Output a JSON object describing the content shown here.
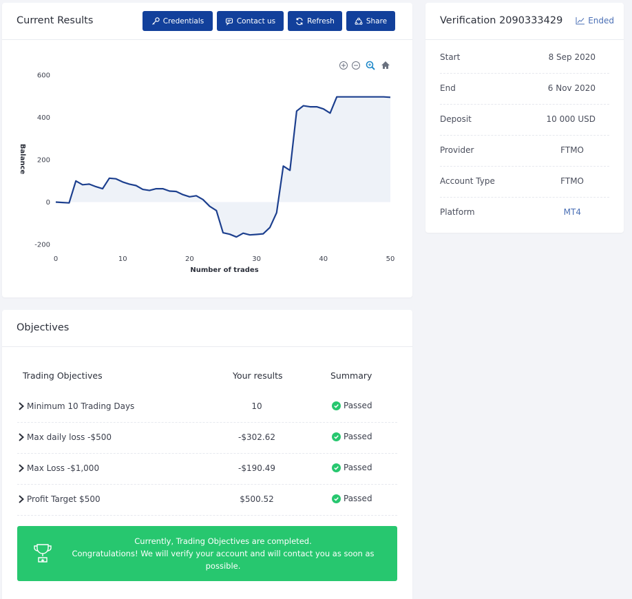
{
  "results": {
    "title": "Current Results",
    "buttons": {
      "credentials": "Credentials",
      "contact": "Contact us",
      "refresh": "Refresh",
      "share": "Share"
    }
  },
  "chart_data": {
    "type": "area",
    "xlabel": "Number of trades",
    "ylabel": "Balance",
    "xlim": [
      0,
      50
    ],
    "ylim": [
      -200,
      600
    ],
    "x_ticks": [
      0,
      10,
      20,
      30,
      40,
      50
    ],
    "y_ticks": [
      600,
      400,
      200,
      0,
      -200
    ],
    "x": [
      0,
      1,
      2,
      3,
      4,
      5,
      6,
      7,
      8,
      9,
      10,
      11,
      12,
      13,
      14,
      15,
      16,
      17,
      18,
      19,
      20,
      21,
      22,
      23,
      24,
      25,
      26,
      27,
      28,
      29,
      30,
      31,
      32,
      33,
      34,
      35,
      36,
      37,
      38,
      39,
      40,
      41,
      42,
      43,
      44,
      45,
      46,
      47,
      48,
      49,
      50
    ],
    "y": [
      0,
      -2,
      -4,
      100,
      82,
      85,
      73,
      63,
      113,
      110,
      95,
      85,
      78,
      60,
      55,
      63,
      63,
      52,
      50,
      35,
      25,
      30,
      12,
      -20,
      -40,
      -145,
      -152,
      -165,
      -147,
      -155,
      -153,
      -150,
      -120,
      -50,
      170,
      150,
      430,
      455,
      450,
      450,
      440,
      420,
      497,
      497,
      497,
      497,
      497,
      497,
      497,
      497,
      495
    ],
    "line_color": "#1c3f8e",
    "fill_color": "#eef2f8",
    "toolbar_icons": [
      "zoom-in-icon",
      "zoom-out-icon",
      "zoom-select-icon",
      "reset-home-icon"
    ]
  },
  "objectives": {
    "title": "Objectives",
    "headers": {
      "objective": "Trading Objectives",
      "result": "Your results",
      "summary": "Summary"
    },
    "rows": [
      {
        "label": "Minimum 10 Trading Days",
        "result": "10",
        "status": "Passed"
      },
      {
        "label": "Max daily loss -$500",
        "result": "-$302.62",
        "status": "Passed"
      },
      {
        "label": "Max Loss -$1,000",
        "result": "-$190.49",
        "status": "Passed"
      },
      {
        "label": "Profit Target $500",
        "result": "$500.52",
        "status": "Passed"
      }
    ],
    "banner": {
      "line1": "Currently, Trading Objectives are completed.",
      "line2": "Congratulations! We will verify your account and will contact you as soon as possible."
    },
    "colors": {
      "passed": "#27c76f",
      "banner": "#27c76f"
    }
  },
  "verification": {
    "title": "Verification 2090333429",
    "status": "Ended",
    "fields": [
      {
        "key": "Start",
        "value": "8 Sep 2020"
      },
      {
        "key": "End",
        "value": "6 Nov 2020"
      },
      {
        "key": "Deposit",
        "value": "10 000 USD"
      },
      {
        "key": "Provider",
        "value": "FTMO"
      },
      {
        "key": "Account Type",
        "value": "FTMO"
      },
      {
        "key": "Platform",
        "value": "MT4"
      }
    ]
  },
  "colors": {
    "accent": "#12409b",
    "link": "#4a6fb5"
  }
}
